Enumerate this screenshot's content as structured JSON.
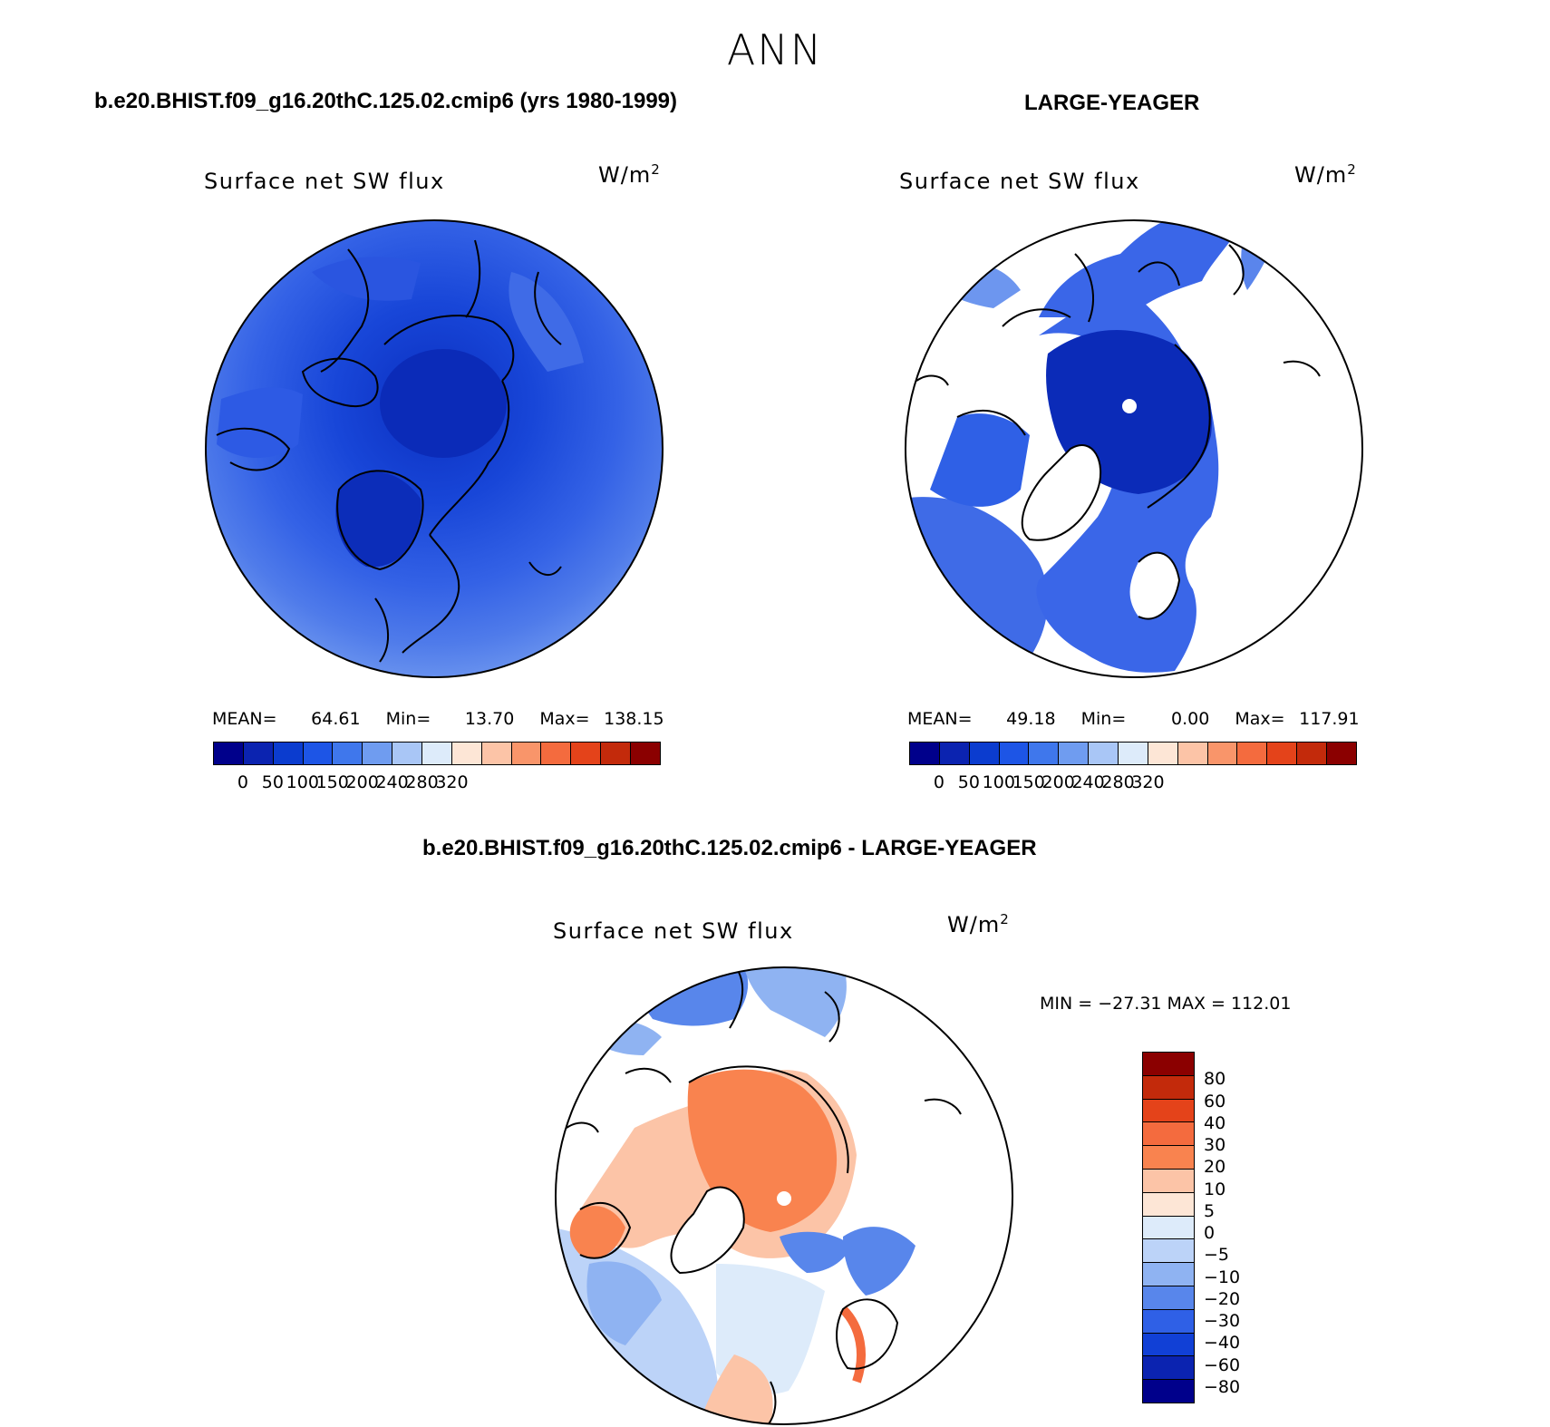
{
  "page": {
    "title": "ANN",
    "case1_title": "b.e20.BHIST.f09_g16.20thC.125.02.cmip6 (yrs 1980-1999)",
    "case2_title": "LARGE-YEAGER",
    "diff_title": "b.e20.BHIST.f09_g16.20thC.125.02.cmip6 - LARGE-YEAGER"
  },
  "panels": [
    {
      "id": "model",
      "variable": "Surface net SW flux",
      "units_base": "W/m",
      "units_exp": "2",
      "stats": {
        "mean_label": "MEAN=",
        "mean": "64.61",
        "min_label": "Min=",
        "min": "13.70",
        "max_label": "Max=",
        "max": "138.15"
      }
    },
    {
      "id": "obs",
      "variable": "Surface net SW flux",
      "units_base": "W/m",
      "units_exp": "2",
      "stats": {
        "mean_label": "MEAN=",
        "mean": "49.18",
        "min_label": "Min=",
        "min": "0.00",
        "max_label": "Max=",
        "max": "117.91"
      }
    },
    {
      "id": "diff",
      "variable": "Surface net SW flux",
      "units_base": "W/m",
      "units_exp": "2",
      "stats": {
        "minmax": "MIN = −27.31 MAX = 112.01"
      }
    }
  ],
  "abs_colorbar": {
    "colors": [
      "#00008b",
      "#0b23b0",
      "#0b3ccf",
      "#1d55e6",
      "#3f77ec",
      "#6f9cf0",
      "#a9c6f6",
      "#ddebfa",
      "#fde6d6",
      "#fcc4a7",
      "#f9956a",
      "#f46b3e",
      "#e4431a",
      "#c32a0b",
      "#8b0000"
    ],
    "ticks": [
      "0",
      "50",
      "100",
      "150",
      "200",
      "240",
      "280",
      "320"
    ]
  },
  "diff_colorbar": {
    "colors": [
      "#8b0000",
      "#c32a0b",
      "#e4431a",
      "#f46b3e",
      "#f9834f",
      "#fcc4a7",
      "#fde6d6",
      "#ddebfa",
      "#bcd3f8",
      "#8fb3f2",
      "#5886eb",
      "#2f60e6",
      "#1140d6",
      "#0b23b0",
      "#00008b"
    ],
    "ticks": [
      "80",
      "60",
      "40",
      "30",
      "20",
      "10",
      "5",
      "0",
      "−5",
      "−10",
      "−20",
      "−30",
      "−40",
      "−60",
      "−80"
    ]
  }
}
